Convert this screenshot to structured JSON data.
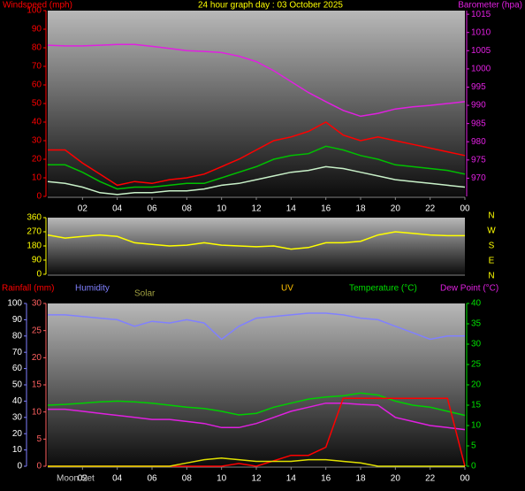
{
  "chart_data": [
    {
      "type": "line",
      "title": "24 hour graph day : 03 October 2025",
      "ylabel": "Windspeed (mph)",
      "y2label": "Barometer (hpa)",
      "x": [
        0,
        1,
        2,
        3,
        4,
        5,
        6,
        7,
        8,
        9,
        10,
        11,
        12,
        13,
        14,
        15,
        16,
        17,
        18,
        19,
        20,
        21,
        22,
        23,
        24
      ],
      "xlim": [
        0,
        24
      ],
      "xticks": [
        {
          "value": 2,
          "label": "02"
        },
        {
          "value": 4,
          "label": "04"
        },
        {
          "value": 6,
          "label": "06"
        },
        {
          "value": 8,
          "label": "08"
        },
        10,
        12,
        14,
        16,
        18,
        20,
        22,
        {
          "value": 24,
          "label": "00"
        }
      ],
      "ylim": [
        0,
        100
      ],
      "yticks": [
        0,
        10,
        20,
        30,
        40,
        50,
        60,
        70,
        80,
        90,
        100
      ],
      "ycolor": "#ff0000",
      "y2lim": [
        965,
        1016
      ],
      "y2ticks": [
        970,
        975,
        980,
        985,
        990,
        995,
        1000,
        1005,
        1010,
        1015
      ],
      "y2color": "#e020e0",
      "series": [
        {
          "color": "#ff0000",
          "values": [
            25,
            25,
            18,
            12,
            6,
            8,
            7,
            9,
            10,
            12,
            16,
            20,
            25,
            30,
            32,
            35,
            40,
            33,
            30,
            32,
            30,
            28,
            26,
            24,
            22
          ]
        },
        {
          "color": "#00c000",
          "values": [
            17,
            17,
            13,
            8,
            4,
            5,
            5,
            6,
            7,
            7,
            10,
            13,
            16,
            20,
            22,
            23,
            27,
            25,
            22,
            20,
            17,
            16,
            15,
            14,
            12
          ]
        },
        {
          "color": "#c8f0c8",
          "values": [
            8,
            7,
            5,
            2,
            1,
            2,
            2,
            3,
            3,
            4,
            6,
            7,
            9,
            11,
            13,
            14,
            16,
            15,
            13,
            11,
            9,
            8,
            7,
            6,
            5
          ]
        },
        {
          "color": "#e020e0",
          "axis": "y2",
          "values": [
            1006.5,
            1006.3,
            1006.3,
            1006.5,
            1006.7,
            1006.7,
            1006.2,
            1005.6,
            1005,
            1004.8,
            1004.5,
            1003.5,
            1002,
            999.5,
            996.5,
            993.5,
            991,
            988.6,
            987,
            987.8,
            989,
            989.6,
            990,
            990.5,
            991
          ]
        }
      ]
    },
    {
      "type": "line",
      "x": [
        0,
        1,
        2,
        3,
        4,
        5,
        6,
        7,
        8,
        9,
        10,
        11,
        12,
        13,
        14,
        15,
        16,
        17,
        18,
        19,
        20,
        21,
        22,
        23,
        24
      ],
      "xlim": [
        0,
        24
      ],
      "ylim": [
        0,
        360
      ],
      "yticks": [
        0,
        90,
        180,
        270,
        360
      ],
      "ycolor": "#ffff00",
      "compass": [
        "N",
        "W",
        "S",
        "E",
        "N"
      ],
      "series": [
        {
          "color": "#ffff00",
          "values": [
            250,
            230,
            240,
            250,
            240,
            200,
            190,
            180,
            185,
            200,
            185,
            180,
            175,
            180,
            160,
            170,
            200,
            200,
            210,
            250,
            270,
            260,
            250,
            245,
            245
          ]
        }
      ]
    },
    {
      "type": "line",
      "labels": [
        {
          "text": "Rainfall (mm)",
          "color": "#ff0000"
        },
        {
          "text": "Humidity",
          "color": "#8080ff"
        },
        {
          "text": "Solar",
          "color": "#a0a040"
        },
        {
          "text": "UV",
          "color": "#ffc000"
        },
        {
          "text": "Temperature (°C)",
          "color": "#00e000"
        },
        {
          "text": "Dew Point (°C)",
          "color": "#e020e0"
        }
      ],
      "note": "Moon Set",
      "x": [
        0,
        1,
        2,
        3,
        4,
        5,
        6,
        7,
        8,
        9,
        10,
        11,
        12,
        13,
        14,
        15,
        16,
        17,
        18,
        19,
        20,
        21,
        22,
        23,
        24
      ],
      "xlim": [
        0,
        24
      ],
      "xticks": [
        {
          "value": 2,
          "label": "02"
        },
        {
          "value": 4,
          "label": "04"
        },
        {
          "value": 6,
          "label": "06"
        },
        {
          "value": 8,
          "label": "08"
        },
        10,
        12,
        14,
        16,
        18,
        20,
        22,
        {
          "value": 24,
          "label": "00"
        }
      ],
      "ylim": [
        0,
        100
      ],
      "yticks": [
        0,
        10,
        20,
        30,
        40,
        50,
        60,
        70,
        80,
        90,
        100
      ],
      "ycolor": "#8080ff",
      "y2lim": [
        0,
        40
      ],
      "y2ticks": [
        0,
        5,
        10,
        15,
        20,
        25,
        30,
        35,
        40
      ],
      "y2color": "#00e000",
      "y3lim": [
        0,
        30
      ],
      "y3ticks": [
        0,
        5,
        10,
        15,
        20,
        25,
        30
      ],
      "y3color": "#ff6060",
      "series": [
        {
          "color": "#8080ff",
          "values": [
            93,
            93,
            92,
            91,
            90,
            86,
            89,
            88,
            90,
            88,
            78,
            86,
            91,
            92,
            93,
            94,
            94,
            93,
            91,
            90,
            86,
            82,
            78,
            80,
            80
          ]
        },
        {
          "color": "#00d000",
          "axis": "y2",
          "values": [
            15,
            15.2,
            15.5,
            15.8,
            16,
            15.8,
            15.5,
            15,
            14.5,
            14.2,
            13.5,
            12.6,
            13,
            14.5,
            15.5,
            16.5,
            17,
            17.3,
            18,
            17.5,
            16,
            15,
            14.5,
            13.5,
            12.5
          ]
        },
        {
          "color": "#e020e0",
          "axis": "y2",
          "values": [
            14,
            14,
            13.5,
            13,
            12.5,
            12,
            11.5,
            11.5,
            11,
            10.5,
            9.5,
            9.5,
            10.5,
            12,
            13.5,
            14.5,
            15.5,
            15.5,
            15.2,
            15,
            12,
            11,
            10,
            9.5,
            9
          ]
        },
        {
          "color": "#ff0000",
          "axis": "y3",
          "values": [
            0,
            0,
            0,
            0,
            0,
            0,
            0,
            0,
            0,
            0,
            0,
            0.5,
            0,
            1,
            2,
            2,
            3.5,
            12.5,
            12.5,
            12.5,
            12.5,
            12.5,
            12.5,
            12.5,
            0
          ]
        },
        {
          "color": "#e0e000",
          "values": [
            0,
            0,
            0,
            0,
            0,
            0,
            0,
            0,
            2,
            4,
            5,
            4,
            3,
            3,
            3,
            4,
            4,
            3,
            2,
            0,
            0,
            0,
            0,
            0,
            0
          ]
        }
      ]
    }
  ]
}
